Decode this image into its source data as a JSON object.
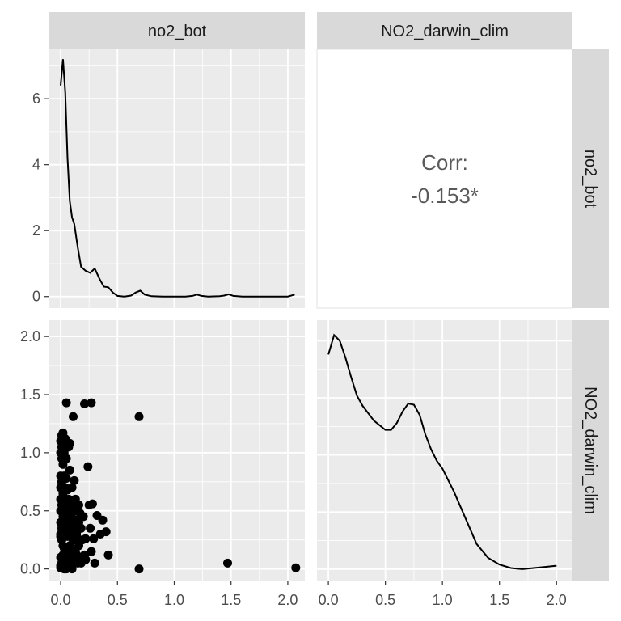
{
  "chart_data": {
    "type": "scatter",
    "layout": "pairs-matrix",
    "variables": [
      "no2_bot",
      "NO2_darwin_clim"
    ],
    "axes": {
      "no2_bot": {
        "range": [
          -0.1,
          2.15
        ],
        "ticks": [
          "0.0",
          "0.5",
          "1.0",
          "1.5",
          "2.0"
        ],
        "tick_values": [
          0,
          0.5,
          1,
          1.5,
          2
        ]
      },
      "NO2_darwin_clim": {
        "range": [
          -0.1,
          2.14
        ],
        "ticks": [
          "0.0",
          "0.5",
          "1.0",
          "1.5",
          "2.0"
        ],
        "tick_values": [
          0,
          0.5,
          1,
          1.5,
          2
        ]
      },
      "density_no2_bot": {
        "range": [
          -0.35,
          7.5
        ],
        "ticks": [
          "0",
          "2",
          "4",
          "6"
        ],
        "tick_values": [
          0,
          2,
          4,
          6
        ]
      }
    },
    "grid": true,
    "correlation": {
      "label": "Corr:",
      "value": "-0.153*"
    },
    "density_no2_bot": {
      "x": [
        0.0,
        0.02,
        0.04,
        0.06,
        0.08,
        0.1,
        0.12,
        0.15,
        0.18,
        0.22,
        0.26,
        0.3,
        0.34,
        0.38,
        0.42,
        0.46,
        0.5,
        0.56,
        0.62,
        0.66,
        0.7,
        0.74,
        0.8,
        0.9,
        1.0,
        1.1,
        1.16,
        1.2,
        1.24,
        1.3,
        1.4,
        1.44,
        1.48,
        1.52,
        1.6,
        1.8,
        2.0,
        2.06
      ],
      "y": [
        6.4,
        7.2,
        6.2,
        4.2,
        2.9,
        2.4,
        2.2,
        1.5,
        0.9,
        0.78,
        0.72,
        0.85,
        0.55,
        0.3,
        0.28,
        0.12,
        0.02,
        0.0,
        0.03,
        0.12,
        0.18,
        0.06,
        0.01,
        0.0,
        0.0,
        0.0,
        0.02,
        0.06,
        0.02,
        0.0,
        0.01,
        0.03,
        0.07,
        0.02,
        0.0,
        0.0,
        0.0,
        0.06
      ]
    },
    "density_NO2_darwin_clim": {
      "x": [
        0.0,
        0.05,
        0.1,
        0.15,
        0.2,
        0.25,
        0.3,
        0.4,
        0.5,
        0.55,
        0.6,
        0.65,
        0.7,
        0.75,
        0.8,
        0.85,
        0.9,
        0.95,
        1.0,
        1.1,
        1.2,
        1.3,
        1.4,
        1.5,
        1.6,
        1.7,
        1.8,
        1.9,
        2.0
      ],
      "y": [
        1.88,
        2.05,
        2.0,
        1.85,
        1.68,
        1.52,
        1.43,
        1.3,
        1.22,
        1.22,
        1.28,
        1.38,
        1.45,
        1.44,
        1.35,
        1.18,
        1.05,
        0.95,
        0.88,
        0.68,
        0.45,
        0.22,
        0.1,
        0.04,
        0.01,
        0.0,
        0.01,
        0.02,
        0.03
      ]
    },
    "points": {
      "x": [
        0.0,
        0.0,
        0.0,
        0.0,
        0.0,
        0.0,
        0.0,
        0.0,
        0.0,
        0.0,
        0.0,
        0.0,
        0.01,
        0.01,
        0.01,
        0.01,
        0.01,
        0.01,
        0.01,
        0.01,
        0.01,
        0.01,
        0.02,
        0.02,
        0.02,
        0.02,
        0.02,
        0.02,
        0.02,
        0.02,
        0.02,
        0.03,
        0.03,
        0.03,
        0.03,
        0.03,
        0.03,
        0.03,
        0.03,
        0.04,
        0.04,
        0.04,
        0.04,
        0.05,
        0.05,
        0.05,
        0.05,
        0.05,
        0.05,
        0.06,
        0.06,
        0.06,
        0.06,
        0.07,
        0.07,
        0.07,
        0.07,
        0.08,
        0.08,
        0.08,
        0.08,
        0.08,
        0.09,
        0.09,
        0.09,
        0.1,
        0.1,
        0.1,
        0.1,
        0.1,
        0.11,
        0.11,
        0.12,
        0.12,
        0.12,
        0.12,
        0.13,
        0.13,
        0.13,
        0.14,
        0.14,
        0.14,
        0.15,
        0.15,
        0.15,
        0.16,
        0.16,
        0.16,
        0.17,
        0.17,
        0.18,
        0.18,
        0.19,
        0.2,
        0.21,
        0.22,
        0.22,
        0.24,
        0.25,
        0.26,
        0.27,
        0.28,
        0.29,
        0.3,
        0.32,
        0.35,
        0.37,
        0.4,
        0.42,
        0.05,
        0.21,
        0.27,
        0.11,
        0.05,
        0.69,
        0.69,
        1.47,
        2.07
      ],
      "y": [
        1.1,
        1.0,
        0.8,
        0.7,
        0.6,
        0.5,
        0.4,
        0.3,
        0.28,
        0.1,
        0.03,
        0.01,
        1.15,
        1.05,
        0.95,
        0.75,
        0.6,
        0.55,
        0.35,
        0.25,
        0.05,
        0.02,
        1.17,
        1.1,
        0.9,
        0.65,
        0.5,
        0.45,
        0.2,
        0.12,
        0.02,
        1.0,
        0.8,
        0.58,
        0.4,
        0.3,
        0.18,
        0.08,
        0.0,
        1.12,
        0.7,
        0.5,
        0.05,
        0.95,
        0.78,
        0.55,
        0.35,
        0.12,
        0.01,
        0.68,
        0.5,
        0.28,
        0.1,
        1.05,
        0.6,
        0.45,
        0.02,
        1.08,
        0.85,
        0.4,
        0.2,
        0.05,
        0.55,
        0.3,
        0.15,
        0.7,
        0.48,
        0.32,
        0.1,
        0.0,
        0.58,
        0.25,
        0.76,
        0.5,
        0.35,
        0.08,
        0.6,
        0.42,
        0.15,
        0.55,
        0.3,
        0.12,
        0.5,
        0.26,
        0.05,
        0.55,
        0.4,
        0.2,
        0.48,
        0.1,
        0.35,
        0.05,
        0.25,
        0.45,
        0.12,
        0.26,
        0.08,
        0.88,
        0.55,
        0.35,
        0.15,
        0.56,
        0.26,
        0.05,
        0.46,
        0.3,
        0.42,
        0.32,
        0.12,
        1.43,
        1.42,
        1.43,
        1.31,
        0.0,
        1.31,
        0.0,
        0.05,
        0.01
      ]
    }
  }
}
